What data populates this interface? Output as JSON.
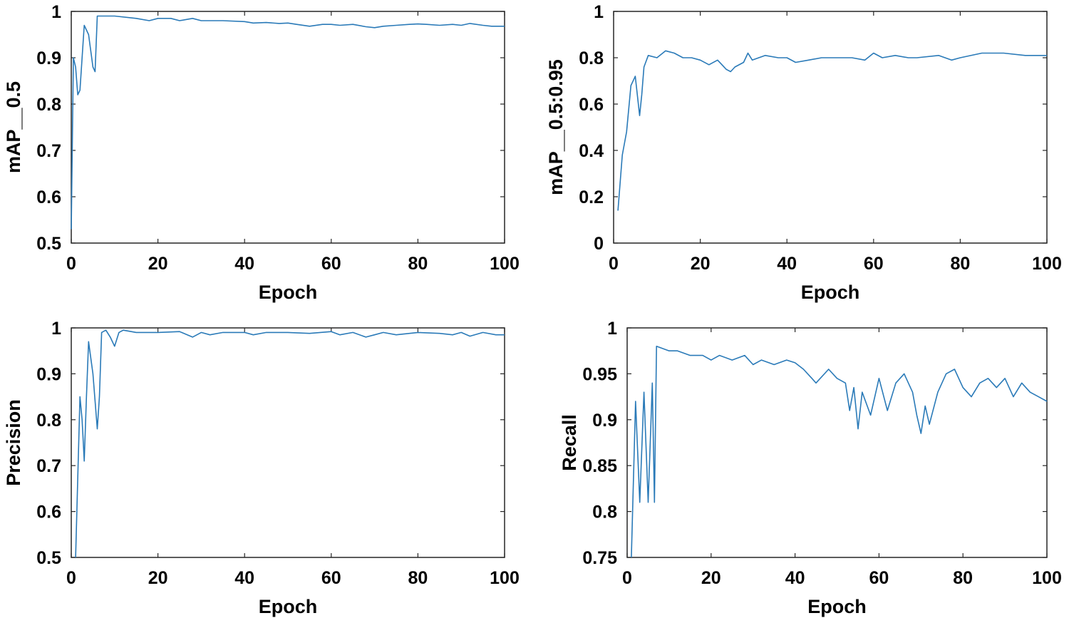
{
  "chart_data": [
    {
      "type": "line",
      "xlabel": "Epoch",
      "ylabel": "mAP__0.5",
      "xlim": [
        0,
        100
      ],
      "ylim": [
        0.5,
        1
      ],
      "xticks": [
        "0",
        "20",
        "40",
        "60",
        "80",
        "100"
      ],
      "yticks": [
        "0.5",
        "0.6",
        "0.7",
        "0.8",
        "0.9",
        "1"
      ],
      "grid": false,
      "series": [
        {
          "color": "#2a7ab8",
          "x": [
            0,
            0.5,
            1,
            1.5,
            2,
            3,
            4,
            5,
            5.5,
            6,
            7,
            10,
            15,
            18,
            20,
            23,
            25,
            28,
            30,
            35,
            40,
            42,
            45,
            48,
            50,
            52,
            55,
            58,
            60,
            62,
            65,
            68,
            70,
            72,
            75,
            78,
            80,
            82,
            85,
            88,
            90,
            92,
            95,
            97,
            100
          ],
          "y": [
            0.53,
            0.9,
            0.88,
            0.82,
            0.83,
            0.97,
            0.95,
            0.88,
            0.87,
            0.99,
            0.99,
            0.99,
            0.985,
            0.98,
            0.985,
            0.985,
            0.98,
            0.985,
            0.98,
            0.98,
            0.978,
            0.975,
            0.976,
            0.974,
            0.975,
            0.972,
            0.968,
            0.972,
            0.972,
            0.97,
            0.972,
            0.967,
            0.965,
            0.968,
            0.97,
            0.972,
            0.973,
            0.972,
            0.97,
            0.972,
            0.97,
            0.974,
            0.97,
            0.968,
            0.968
          ]
        }
      ]
    },
    {
      "type": "line",
      "xlabel": "Epoch",
      "ylabel": "mAP__0.5:0.95",
      "xlim": [
        0,
        100
      ],
      "ylim": [
        0,
        1
      ],
      "xticks": [
        "0",
        "20",
        "40",
        "60",
        "80",
        "100"
      ],
      "yticks": [
        "0",
        "0.2",
        "0.4",
        "0.6",
        "0.8",
        "1"
      ],
      "grid": false,
      "series": [
        {
          "color": "#2a7ab8",
          "x": [
            1,
            2,
            3,
            4,
            5,
            6,
            6.5,
            7,
            8,
            10,
            12,
            14,
            16,
            18,
            20,
            22,
            24,
            26,
            27,
            28,
            30,
            31,
            32,
            35,
            38,
            40,
            42,
            45,
            48,
            50,
            55,
            58,
            60,
            62,
            65,
            68,
            70,
            75,
            78,
            80,
            85,
            90,
            95,
            100
          ],
          "y": [
            0.14,
            0.38,
            0.48,
            0.68,
            0.72,
            0.55,
            0.64,
            0.76,
            0.81,
            0.8,
            0.83,
            0.82,
            0.8,
            0.8,
            0.79,
            0.77,
            0.79,
            0.75,
            0.74,
            0.76,
            0.78,
            0.82,
            0.79,
            0.81,
            0.8,
            0.8,
            0.78,
            0.79,
            0.8,
            0.8,
            0.8,
            0.79,
            0.82,
            0.8,
            0.81,
            0.8,
            0.8,
            0.81,
            0.79,
            0.8,
            0.82,
            0.82,
            0.81,
            0.81
          ]
        }
      ]
    },
    {
      "type": "line",
      "xlabel": "Epoch",
      "ylabel": "Precision",
      "xlim": [
        0,
        100
      ],
      "ylim": [
        0.5,
        1
      ],
      "xticks": [
        "0",
        "20",
        "40",
        "60",
        "80",
        "100"
      ],
      "yticks": [
        "0.5",
        "0.6",
        "0.7",
        "0.8",
        "0.9",
        "1"
      ],
      "grid": false,
      "series": [
        {
          "color": "#2a7ab8",
          "x": [
            1,
            2,
            2.5,
            3,
            3.5,
            4,
            5,
            6,
            6.5,
            7,
            8,
            9,
            10,
            11,
            12,
            15,
            20,
            25,
            28,
            30,
            32,
            35,
            40,
            42,
            45,
            50,
            55,
            60,
            62,
            65,
            68,
            70,
            72,
            75,
            80,
            85,
            88,
            90,
            92,
            95,
            98,
            100
          ],
          "y": [
            0.5,
            0.85,
            0.8,
            0.71,
            0.85,
            0.97,
            0.9,
            0.78,
            0.85,
            0.99,
            0.995,
            0.98,
            0.96,
            0.99,
            0.995,
            0.99,
            0.99,
            0.992,
            0.98,
            0.99,
            0.985,
            0.99,
            0.99,
            0.985,
            0.99,
            0.99,
            0.988,
            0.992,
            0.985,
            0.99,
            0.98,
            0.985,
            0.99,
            0.985,
            0.99,
            0.988,
            0.985,
            0.99,
            0.982,
            0.99,
            0.985,
            0.985
          ]
        }
      ]
    },
    {
      "type": "line",
      "xlabel": "Epoch",
      "ylabel": "Recall",
      "xlim": [
        0,
        100
      ],
      "ylim": [
        0.75,
        1
      ],
      "xticks": [
        "0",
        "20",
        "40",
        "60",
        "80",
        "100"
      ],
      "yticks": [
        "0.75",
        "0.8",
        "0.85",
        "0.9",
        "0.95",
        "1"
      ],
      "grid": false,
      "series": [
        {
          "color": "#2a7ab8",
          "x": [
            1,
            2,
            3,
            4,
            5,
            6,
            6.5,
            7,
            10,
            12,
            15,
            18,
            20,
            22,
            25,
            28,
            30,
            32,
            35,
            38,
            40,
            42,
            44,
            45,
            48,
            50,
            52,
            53,
            54,
            55,
            56,
            58,
            60,
            62,
            64,
            66,
            68,
            69,
            70,
            71,
            72,
            74,
            76,
            78,
            80,
            82,
            84,
            86,
            88,
            90,
            92,
            94,
            96,
            98,
            100
          ],
          "y": [
            0.75,
            0.92,
            0.81,
            0.93,
            0.81,
            0.94,
            0.81,
            0.98,
            0.975,
            0.975,
            0.97,
            0.97,
            0.965,
            0.97,
            0.965,
            0.97,
            0.96,
            0.965,
            0.96,
            0.965,
            0.962,
            0.955,
            0.945,
            0.94,
            0.955,
            0.945,
            0.94,
            0.91,
            0.935,
            0.89,
            0.93,
            0.905,
            0.945,
            0.91,
            0.94,
            0.95,
            0.93,
            0.905,
            0.885,
            0.915,
            0.895,
            0.93,
            0.95,
            0.955,
            0.935,
            0.925,
            0.94,
            0.945,
            0.935,
            0.945,
            0.925,
            0.94,
            0.93,
            0.925,
            0.92
          ]
        }
      ]
    }
  ]
}
